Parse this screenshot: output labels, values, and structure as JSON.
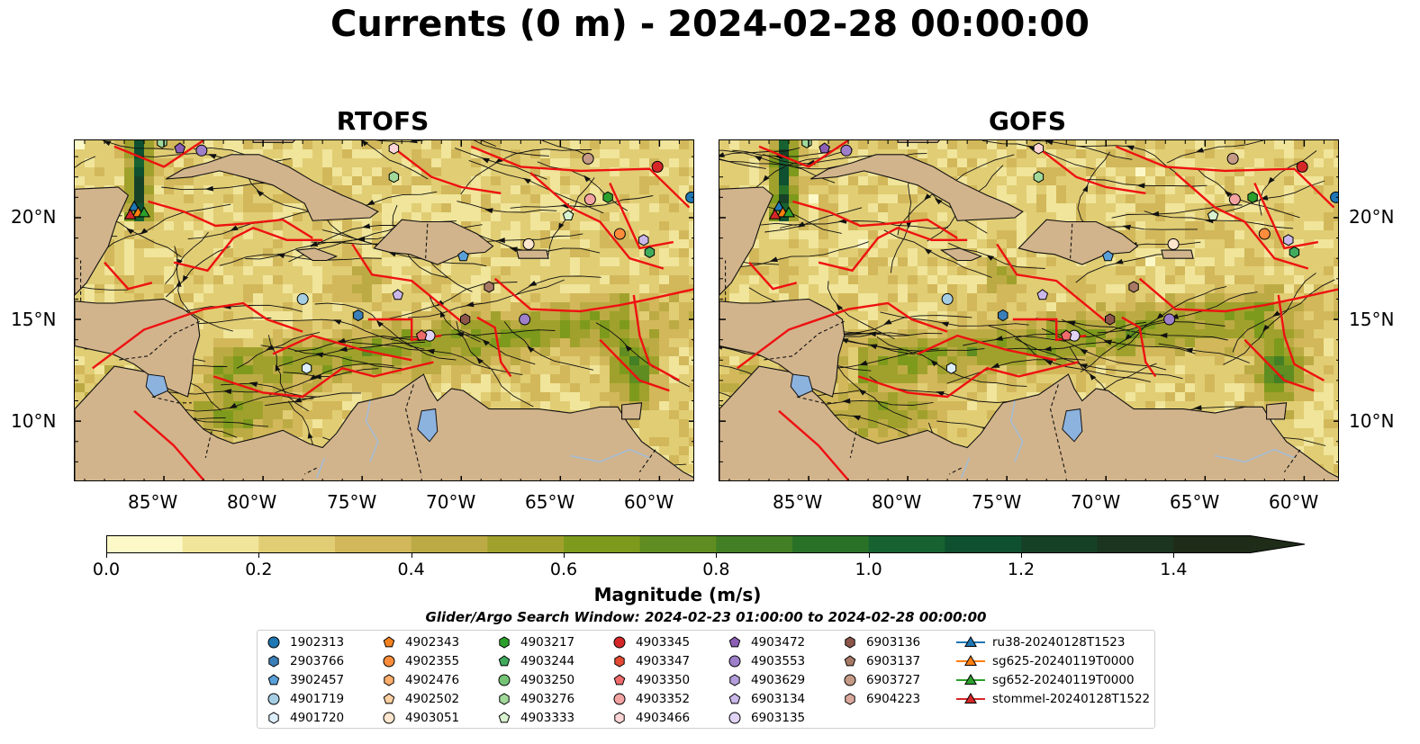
{
  "title": "Currents (0 m) - 2024-02-28 00:00:00",
  "panels": [
    {
      "title": "RTOFS"
    },
    {
      "title": "GOFS"
    }
  ],
  "lat_ticks": [
    "20°N",
    "15°N",
    "10°N"
  ],
  "lon_ticks": [
    "85°W",
    "80°W",
    "75°W",
    "70°W",
    "65°W",
    "60°W"
  ],
  "colorbar": {
    "label": "Magnitude (m/s)",
    "ticks": [
      "0.0",
      "0.2",
      "0.4",
      "0.6",
      "0.8",
      "1.0",
      "1.2",
      "1.4"
    ],
    "min": 0.0,
    "max": 1.5,
    "extend": "max",
    "colors": [
      "#fdf8c8",
      "#f0e59a",
      "#e1cd74",
      "#d2b85a",
      "#bcab44",
      "#a0a12c",
      "#7e9a1c",
      "#5f8d21",
      "#437f24",
      "#2a7128",
      "#176230",
      "#0e5030",
      "#174127",
      "#1b3520",
      "#1e2c18"
    ]
  },
  "search_window": "Glider/Argo Search Window: 2024-02-23 01:00:00 to 2024-02-28 00:00:00",
  "legend": {
    "columns": [
      [
        {
          "label": "1902313",
          "marker": "circle",
          "color": "#1f77b4"
        },
        {
          "label": "2903766",
          "marker": "hexagon",
          "color": "#3b7fb8"
        },
        {
          "label": "3902457",
          "marker": "pentagon",
          "color": "#5aa0d8"
        },
        {
          "label": "4901719",
          "marker": "circle",
          "color": "#a6cee3"
        },
        {
          "label": "4901720",
          "marker": "hexagon",
          "color": "#dceefa"
        }
      ],
      [
        {
          "label": "4902343",
          "marker": "pentagon",
          "color": "#f58220"
        },
        {
          "label": "4902355",
          "marker": "circle",
          "color": "#fd8d3c"
        },
        {
          "label": "4902476",
          "marker": "hexagon",
          "color": "#fdae6b"
        },
        {
          "label": "4902502",
          "marker": "pentagon",
          "color": "#fdd0a2"
        },
        {
          "label": "4903051",
          "marker": "circle",
          "color": "#fee6ce"
        }
      ],
      [
        {
          "label": "4903217",
          "marker": "hexagon",
          "color": "#2ca02c"
        },
        {
          "label": "4903244",
          "marker": "pentagon",
          "color": "#41ab5d"
        },
        {
          "label": "4903250",
          "marker": "circle",
          "color": "#74c476"
        },
        {
          "label": "4903276",
          "marker": "hexagon",
          "color": "#a1d99b"
        },
        {
          "label": "4903333",
          "marker": "pentagon",
          "color": "#d9f2d0"
        }
      ],
      [
        {
          "label": "4903345",
          "marker": "circle",
          "color": "#d62728"
        },
        {
          "label": "4903347",
          "marker": "hexagon",
          "color": "#e34a33"
        },
        {
          "label": "4903350",
          "marker": "pentagon",
          "color": "#ef6b6b"
        },
        {
          "label": "4903352",
          "marker": "circle",
          "color": "#f4a3a3"
        },
        {
          "label": "4903466",
          "marker": "hexagon",
          "color": "#fdd5d5"
        }
      ],
      [
        {
          "label": "4903472",
          "marker": "pentagon",
          "color": "#8c5fb5"
        },
        {
          "label": "4903553",
          "marker": "circle",
          "color": "#9e7fc9"
        },
        {
          "label": "4903629",
          "marker": "hexagon",
          "color": "#b39ddb"
        },
        {
          "label": "6903134",
          "marker": "pentagon",
          "color": "#cbb8ea"
        },
        {
          "label": "6903135",
          "marker": "circle",
          "color": "#e0d3f5"
        }
      ],
      [
        {
          "label": "6903136",
          "marker": "hexagon",
          "color": "#8c564b"
        },
        {
          "label": "6903137",
          "marker": "pentagon",
          "color": "#a87a66"
        },
        {
          "label": "6903727",
          "marker": "circle",
          "color": "#c49a86"
        },
        {
          "label": "6904223",
          "marker": "hexagon",
          "color": "#dba99c"
        }
      ],
      [
        {
          "label": "ru38-20240128T1523",
          "marker": "triangle-line",
          "color": "#1f77b4"
        },
        {
          "label": "sg625-20240119T0000",
          "marker": "triangle-line",
          "color": "#ff7f0e"
        },
        {
          "label": "sg652-20240119T0000",
          "marker": "triangle-line",
          "color": "#2ca02c"
        },
        {
          "label": "stommel-20240128T1522",
          "marker": "triangle-line",
          "color": "#d62728"
        }
      ]
    ]
  }
}
